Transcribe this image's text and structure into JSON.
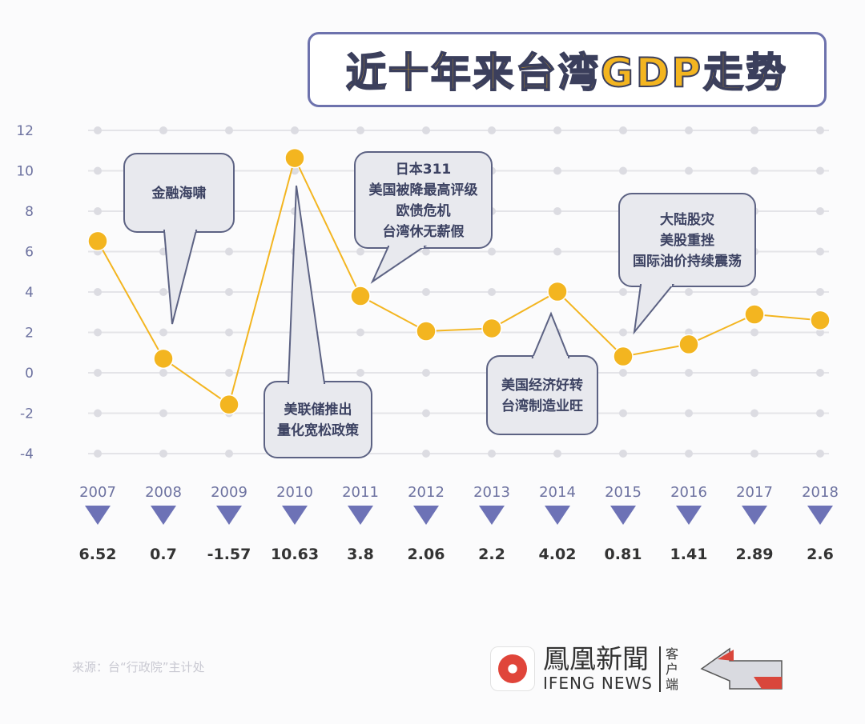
{
  "title": "近十年来台湾GDP走势",
  "source": "来源：台“行政院”主计处",
  "logo": {
    "cn": "鳳凰新聞",
    "en": "IFENG NEWS",
    "sub": "客户端"
  },
  "colors": {
    "line": "#f3b520",
    "point": "#f3b520",
    "triangle": "#6d72b6",
    "bubble_fill": "#e8e9ee",
    "bubble_stroke": "#5c6283",
    "text": "#3c4262",
    "year": "#6d72a0"
  },
  "chart_data": {
    "type": "line",
    "title": "近十年来台湾GDP走势",
    "categories": [
      "2007",
      "2008",
      "2009",
      "2010",
      "2011",
      "2012",
      "2013",
      "2014",
      "2015",
      "2016",
      "2017",
      "2018"
    ],
    "values": [
      6.52,
      0.7,
      -1.57,
      10.63,
      3.8,
      2.06,
      2.2,
      4.02,
      0.81,
      1.41,
      2.89,
      2.6
    ],
    "value_labels": [
      "6.52",
      "0.7",
      "-1.57",
      "10.63",
      "3.8",
      "2.06",
      "2.2",
      "4.02",
      "0.81",
      "1.41",
      "2.89",
      "2.6"
    ],
    "yticks": [
      "12",
      "10",
      "8",
      "6",
      "4",
      "2",
      "0",
      "-2",
      "-4"
    ],
    "ylim": [
      -4,
      12
    ],
    "grid": true,
    "annotations": [
      {
        "year": "2008",
        "lines": [
          "金融海啸"
        ]
      },
      {
        "year": "2010",
        "lines": [
          "美联储推出",
          "量化宽松政策"
        ]
      },
      {
        "year": "2011",
        "lines": [
          "日本311",
          "美国被降最高评级",
          "欧债危机",
          "台湾休无薪假"
        ]
      },
      {
        "year": "2014",
        "lines": [
          "美国经济好转",
          "台湾制造业旺"
        ]
      },
      {
        "year": "2015",
        "lines": [
          "大陆股灾",
          "美股重挫",
          "国际油价持续震荡"
        ]
      }
    ]
  }
}
